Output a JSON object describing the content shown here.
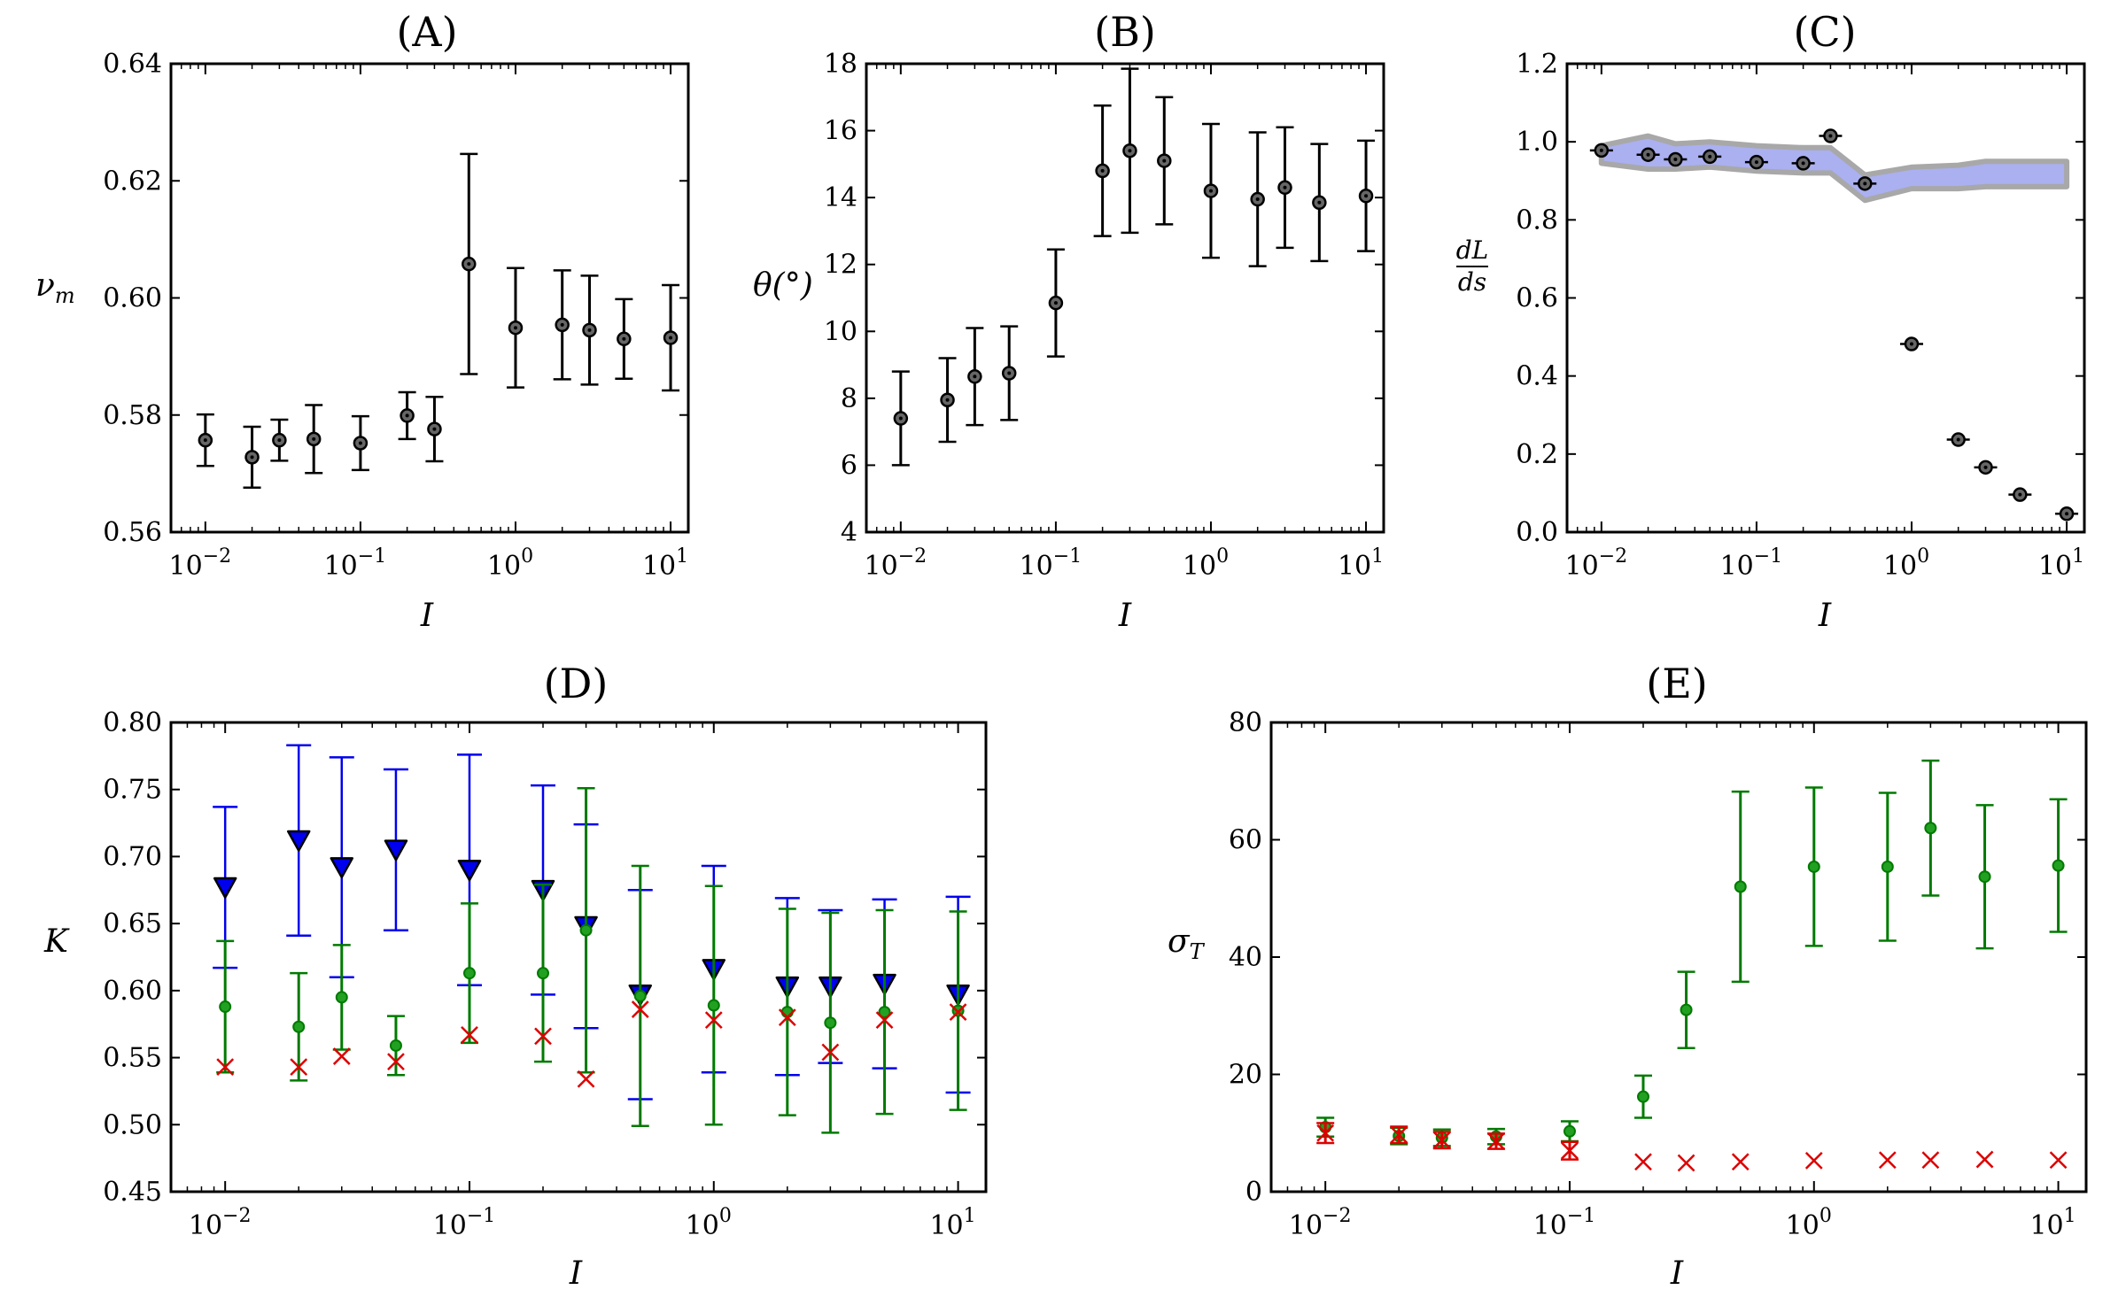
{
  "chart_data": [
    {
      "id": "A",
      "type": "scatter",
      "title": "(A)",
      "xscale": "log",
      "xlim": [
        0.006,
        13
      ],
      "ylim": [
        0.56,
        0.64
      ],
      "xlabel": "I",
      "ylabel": "ν",
      "ylabel_sub": "m",
      "xticks": [
        0.01,
        0.1,
        1,
        10
      ],
      "xtick_labels": [
        {
          "base": "10",
          "exp": "−2"
        },
        {
          "base": "10",
          "exp": "−1"
        },
        {
          "base": "10",
          "exp": "0"
        },
        {
          "base": "10",
          "exp": "1"
        }
      ],
      "yticks": [
        0.56,
        0.58,
        0.6,
        0.62,
        0.64
      ],
      "ytick_labels": [
        "0.56",
        "0.58",
        "0.60",
        "0.62",
        "0.64"
      ],
      "series": [
        {
          "name": "νm",
          "color": "#000000",
          "marker": "circle-dot",
          "x": [
            0.01,
            0.02,
            0.03,
            0.05,
            0.1,
            0.2,
            0.3,
            0.5,
            1,
            2,
            3,
            5,
            10
          ],
          "y": [
            0.5757,
            0.5728,
            0.5757,
            0.5759,
            0.5752,
            0.5799,
            0.5776,
            0.6058,
            0.5949,
            0.5954,
            0.5945,
            0.593,
            0.5932
          ],
          "err": [
            0.0044,
            0.0052,
            0.0035,
            0.0058,
            0.0046,
            0.004,
            0.0055,
            0.0188,
            0.0102,
            0.0093,
            0.0093,
            0.0068,
            0.009
          ]
        }
      ]
    },
    {
      "id": "B",
      "type": "scatter",
      "title": "(B)",
      "xscale": "log",
      "xlim": [
        0.006,
        13
      ],
      "ylim": [
        4,
        18
      ],
      "xlabel": "I",
      "ylabel": "θ(°)",
      "xticks": [
        0.01,
        0.1,
        1,
        10
      ],
      "xtick_labels": [
        {
          "base": "10",
          "exp": "−2"
        },
        {
          "base": "10",
          "exp": "−1"
        },
        {
          "base": "10",
          "exp": "0"
        },
        {
          "base": "10",
          "exp": "1"
        }
      ],
      "yticks": [
        4,
        6,
        8,
        10,
        12,
        14,
        16,
        18
      ],
      "ytick_labels": [
        "4",
        "6",
        "8",
        "10",
        "12",
        "14",
        "16",
        "18"
      ],
      "series": [
        {
          "name": "θ",
          "color": "#000000",
          "marker": "circle-dot",
          "x": [
            0.01,
            0.02,
            0.03,
            0.05,
            0.1,
            0.2,
            0.3,
            0.5,
            1,
            2,
            3,
            5,
            10
          ],
          "y": [
            7.4,
            7.95,
            8.65,
            8.75,
            10.85,
            14.8,
            15.4,
            15.1,
            14.2,
            13.95,
            14.3,
            13.85,
            14.05
          ],
          "err": [
            1.4,
            1.25,
            1.45,
            1.4,
            1.6,
            1.95,
            2.45,
            1.9,
            2.0,
            2.0,
            1.8,
            1.75,
            1.65
          ]
        }
      ]
    },
    {
      "id": "C",
      "type": "scatter",
      "title": "(C)",
      "xscale": "log",
      "xlim": [
        0.006,
        13
      ],
      "ylim": [
        0,
        1.2
      ],
      "xlabel": "I",
      "ylabel_num": "dL",
      "ylabel_den": "ds",
      "xticks": [
        0.01,
        0.1,
        1,
        10
      ],
      "xtick_labels": [
        {
          "base": "10",
          "exp": "−2"
        },
        {
          "base": "10",
          "exp": "−1"
        },
        {
          "base": "10",
          "exp": "0"
        },
        {
          "base": "10",
          "exp": "1"
        }
      ],
      "yticks": [
        0,
        0.2,
        0.4,
        0.6,
        0.8,
        1.0,
        1.2
      ],
      "ytick_labels": [
        "0.0",
        "0.2",
        "0.4",
        "0.6",
        "0.8",
        "1.0",
        "1.2"
      ],
      "band": {
        "color": "#aab0f0",
        "edge": "#a8a8a8",
        "x": [
          0.01,
          0.02,
          0.03,
          0.05,
          0.1,
          0.2,
          0.3,
          0.5,
          1,
          2,
          3,
          5,
          10
        ],
        "upper": [
          0.99,
          1.015,
          0.995,
          1.0,
          0.99,
          0.985,
          0.985,
          0.915,
          0.935,
          0.94,
          0.95,
          0.95,
          0.95
        ],
        "lower": [
          0.945,
          0.93,
          0.93,
          0.935,
          0.925,
          0.92,
          0.92,
          0.85,
          0.88,
          0.88,
          0.885,
          0.885,
          0.885
        ]
      },
      "series": [
        {
          "name": "dL/ds",
          "color": "#000000",
          "marker": "circle-dot-hbar",
          "x": [
            0.01,
            0.02,
            0.03,
            0.05,
            0.1,
            0.2,
            0.3,
            0.5,
            1,
            2,
            3,
            5,
            10
          ],
          "y": [
            0.978,
            0.967,
            0.955,
            0.962,
            0.948,
            0.945,
            1.015,
            0.893,
            0.482,
            0.237,
            0.166,
            0.096,
            0.047
          ],
          "err": [
            0,
            0,
            0,
            0,
            0,
            0,
            0,
            0,
            0,
            0,
            0,
            0,
            0
          ]
        }
      ]
    },
    {
      "id": "D",
      "type": "scatter",
      "title": "(D)",
      "xscale": "log",
      "xlim": [
        0.006,
        13
      ],
      "ylim": [
        0.45,
        0.8
      ],
      "xlabel": "I",
      "ylabel": "K",
      "xticks": [
        0.01,
        0.1,
        1,
        10
      ],
      "xtick_labels": [
        {
          "base": "10",
          "exp": "−2"
        },
        {
          "base": "10",
          "exp": "−1"
        },
        {
          "base": "10",
          "exp": "0"
        },
        {
          "base": "10",
          "exp": "1"
        }
      ],
      "yticks": [
        0.45,
        0.5,
        0.55,
        0.6,
        0.65,
        0.7,
        0.75,
        0.8
      ],
      "ytick_labels": [
        "0.45",
        "0.50",
        "0.55",
        "0.60",
        "0.65",
        "0.70",
        "0.75",
        "0.80"
      ],
      "series": [
        {
          "name": "blue",
          "color": "#0000ee",
          "marker": "triangle-down",
          "x": [
            0.01,
            0.02,
            0.03,
            0.05,
            0.1,
            0.2,
            0.3,
            0.5,
            1,
            2,
            3,
            5,
            10
          ],
          "y": [
            0.677,
            0.712,
            0.692,
            0.705,
            0.69,
            0.675,
            0.648,
            0.597,
            0.616,
            0.603,
            0.603,
            0.605,
            0.597
          ],
          "err": [
            0.06,
            0.071,
            0.082,
            0.06,
            0.086,
            0.078,
            0.076,
            0.078,
            0.077,
            0.066,
            0.057,
            0.063,
            0.073
          ]
        },
        {
          "name": "green",
          "color": "#007a00",
          "marker": "circle",
          "x": [
            0.01,
            0.02,
            0.03,
            0.05,
            0.1,
            0.2,
            0.3,
            0.5,
            1,
            2,
            3,
            5,
            10
          ],
          "y": [
            0.588,
            0.573,
            0.595,
            0.559,
            0.613,
            0.613,
            0.645,
            0.596,
            0.589,
            0.584,
            0.576,
            0.584,
            0.585
          ],
          "err": [
            0.049,
            0.04,
            0.039,
            0.022,
            0.052,
            0.066,
            0.106,
            0.097,
            0.089,
            0.077,
            0.082,
            0.076,
            0.074
          ]
        },
        {
          "name": "red",
          "color": "#dd0000",
          "marker": "x",
          "x": [
            0.01,
            0.02,
            0.03,
            0.05,
            0.1,
            0.2,
            0.3,
            0.5,
            1,
            2,
            3,
            5,
            10
          ],
          "y": [
            0.543,
            0.543,
            0.551,
            0.547,
            0.567,
            0.566,
            0.534,
            0.586,
            0.578,
            0.58,
            0.554,
            0.578,
            0.584
          ],
          "err": [
            0,
            0,
            0,
            0,
            0,
            0,
            0,
            0,
            0,
            0,
            0,
            0,
            0
          ]
        }
      ]
    },
    {
      "id": "E",
      "type": "scatter",
      "title": "(E)",
      "xscale": "log",
      "xlim": [
        0.006,
        13
      ],
      "ylim": [
        0,
        80
      ],
      "xlabel": "I",
      "ylabel": "σ",
      "ylabel_sub": "T",
      "xticks": [
        0.01,
        0.1,
        1,
        10
      ],
      "xtick_labels": [
        {
          "base": "10",
          "exp": "−2"
        },
        {
          "base": "10",
          "exp": "−1"
        },
        {
          "base": "10",
          "exp": "0"
        },
        {
          "base": "10",
          "exp": "1"
        }
      ],
      "yticks": [
        0,
        20,
        40,
        60,
        80
      ],
      "ytick_labels": [
        "0",
        "20",
        "40",
        "60",
        "80"
      ],
      "series": [
        {
          "name": "green",
          "color": "#007a00",
          "marker": "circle",
          "x": [
            0.01,
            0.02,
            0.03,
            0.05,
            0.1,
            0.2,
            0.3,
            0.5,
            1,
            2,
            3,
            5,
            10
          ],
          "y": [
            11.0,
            9.5,
            9.2,
            9.4,
            10.3,
            16.2,
            31.0,
            52.0,
            55.4,
            55.4,
            62.0,
            53.7,
            55.6
          ],
          "err": [
            1.6,
            1.4,
            1.4,
            1.3,
            1.7,
            3.6,
            6.5,
            16.2,
            13.5,
            12.6,
            11.5,
            12.2,
            11.3
          ]
        },
        {
          "name": "red",
          "color": "#dd0000",
          "marker": "x",
          "x": [
            0.01,
            0.02,
            0.03,
            0.05,
            0.1,
            0.2,
            0.3,
            0.5,
            1,
            2,
            3,
            5,
            10
          ],
          "y": [
            10.0,
            9.7,
            8.8,
            8.6,
            7.0,
            5.1,
            4.9,
            5.1,
            5.3,
            5.4,
            5.4,
            5.5,
            5.4
          ],
          "err": [
            1.7,
            1.4,
            1.4,
            1.3,
            1.5,
            0,
            0,
            0,
            0,
            0,
            0,
            0,
            0
          ]
        }
      ]
    }
  ]
}
